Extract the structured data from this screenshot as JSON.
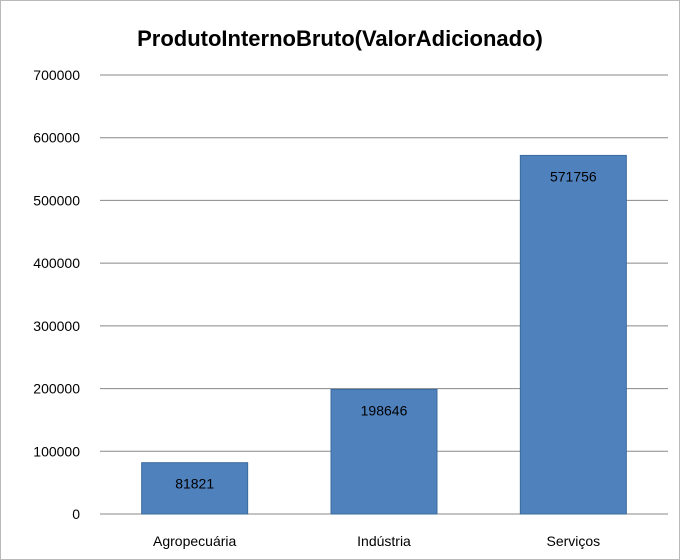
{
  "chart_data": {
    "type": "bar",
    "title": "ProdutoInternoBruto(ValorAdicionado)",
    "categories": [
      "Agropecuária",
      "Indústria",
      "Serviços"
    ],
    "values": [
      81821,
      198646,
      571756
    ],
    "data_labels": [
      "81821",
      "198646",
      "571756"
    ],
    "ylim": [
      0,
      700000
    ],
    "yticks": [
      "0",
      "100000",
      "200000",
      "300000",
      "400000",
      "500000",
      "600000",
      "700000"
    ],
    "grid": true,
    "legend": "none",
    "bar_color": "#4f81bd",
    "bar_border_color": "#3a6a9f",
    "grid_color": "#888888"
  }
}
